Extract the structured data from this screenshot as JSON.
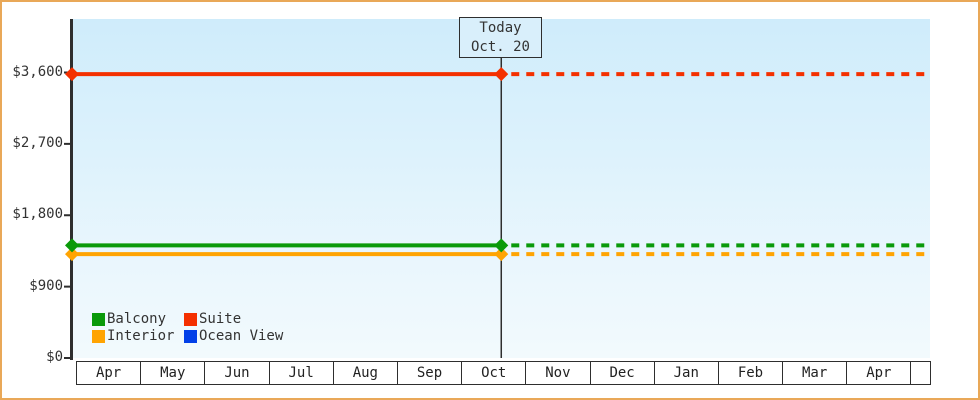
{
  "window": {
    "border_color": "#e9a858",
    "background": "#ffffff"
  },
  "chart_data": {
    "type": "line",
    "title": "",
    "x_categories": [
      "Apr",
      "May",
      "Jun",
      "Jul",
      "Aug",
      "Sep",
      "Oct",
      "Nov",
      "Dec",
      "Jan",
      "Feb",
      "Mar",
      "Apr"
    ],
    "y_ticks": [
      {
        "label": "$0",
        "value": 0
      },
      {
        "label": "$900",
        "value": 900
      },
      {
        "label": "$1,800",
        "value": 1800
      },
      {
        "label": "$2,700",
        "value": 2700
      },
      {
        "label": "$3,600",
        "value": 3600
      }
    ],
    "ylim": [
      0,
      3800
    ],
    "grid": false,
    "today_label": {
      "line1": "Today",
      "line2": "Oct. 20"
    },
    "today": {
      "month_index": 6,
      "fraction": 0.613
    },
    "line_style_note": "solid before today, dotted after today",
    "series": [
      {
        "name": "Interior",
        "color": "#ffa402",
        "value": 1310
      },
      {
        "name": "Balcony",
        "color": "#0a9a0a",
        "value": 1420
      },
      {
        "name": "Suite",
        "color": "#f43000",
        "value": 3580
      },
      {
        "name": "Ocean View",
        "color": "#0240e8",
        "value": null
      }
    ],
    "legend": {
      "position": "bottom-left",
      "items": [
        {
          "label": "Balcony",
          "color": "#0a9a0a"
        },
        {
          "label": "Suite",
          "color": "#f43000"
        },
        {
          "label": "Interior",
          "color": "#ffa402"
        },
        {
          "label": "Ocean View",
          "color": "#0240e8"
        }
      ]
    },
    "axis_color": "#2e2e2e"
  }
}
